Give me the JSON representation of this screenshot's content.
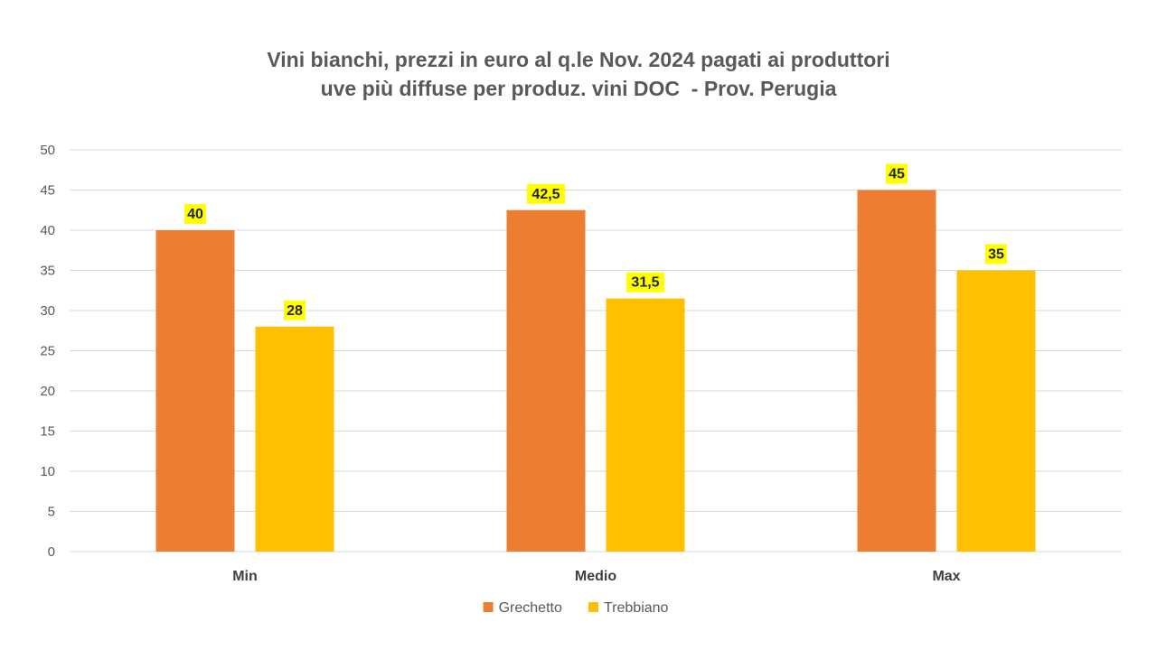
{
  "chart_data": {
    "type": "bar",
    "title_line1": "Vini bianchi, prezzi in euro al q.le Nov. 2024 pagati ai produttori",
    "title_line2": "uve più diffuse per produz. vini DOC  - Prov. Perugia",
    "categories": [
      "Min",
      "Medio",
      "Max"
    ],
    "series": [
      {
        "name": "Grechetto",
        "values": [
          40,
          42.5,
          45
        ],
        "labels": [
          "40",
          "42,5",
          "45"
        ],
        "color": "#ED7D31"
      },
      {
        "name": "Trebbiano",
        "values": [
          28,
          31.5,
          35
        ],
        "labels": [
          "28",
          "31,5",
          "35"
        ],
        "color": "#FFC000"
      }
    ],
    "ylim": [
      0,
      50
    ],
    "yticks": [
      0,
      5,
      10,
      15,
      20,
      25,
      30,
      35,
      40,
      45,
      50
    ],
    "xlabel": "",
    "ylabel": "",
    "grid": true,
    "legend": "bottom",
    "data_label_bg": "#FFFF00",
    "gridline_color": "#D9D9D9"
  }
}
